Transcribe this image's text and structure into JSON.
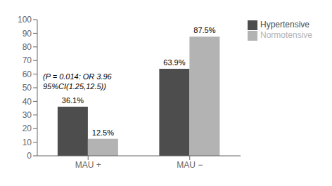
{
  "chart_data": {
    "type": "bar",
    "categories": [
      "MAU +",
      "MAU −"
    ],
    "series": [
      {
        "name": "Hypertensive",
        "color": "#4d4d4d",
        "values": [
          36.1,
          63.9
        ],
        "value_labels": [
          "36.1%",
          "63.9%"
        ]
      },
      {
        "name": "Normotensive",
        "color": "#b3b3b3",
        "values": [
          12.5,
          87.5
        ],
        "value_labels": [
          "12.5%",
          "87.5%"
        ]
      }
    ],
    "ylim": [
      0,
      100
    ],
    "yticks": [
      0,
      10,
      20,
      30,
      40,
      50,
      60,
      70,
      80,
      90,
      100
    ],
    "data_labels": true,
    "legend": "upper right",
    "grid": false,
    "annotation": [
      "(P = 0.014: OR 3.96",
      "95%CI(1.25,12.5))"
    ]
  }
}
